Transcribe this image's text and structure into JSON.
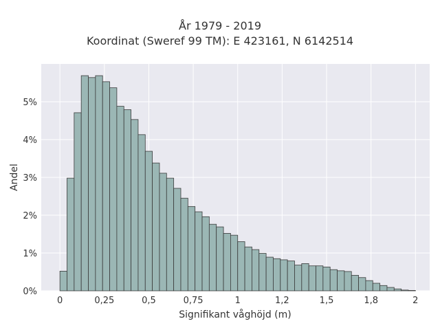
{
  "chart_data": {
    "type": "bar",
    "title": "År 1979 - 2019",
    "subtitle": "Koordinat (Sweref 99 TM): E 423161, N 6142514",
    "xlabel": "Signifikant våghöjd (m)",
    "ylabel": "Andel",
    "xlim": [
      -0.105,
      2.08
    ],
    "ylim": [
      0,
      6
    ],
    "grid": true,
    "bin_width": 0.04,
    "bin_start": 0,
    "xticks": [
      {
        "value": 0,
        "label": "0"
      },
      {
        "value": 0.25,
        "label": "0,25"
      },
      {
        "value": 0.5,
        "label": "0,5"
      },
      {
        "value": 0.75,
        "label": "0,75"
      },
      {
        "value": 1,
        "label": "1"
      },
      {
        "value": 1.25,
        "label": "1,2"
      },
      {
        "value": 1.5,
        "label": "1,5"
      },
      {
        "value": 1.75,
        "label": "1,8"
      },
      {
        "value": 2,
        "label": "2"
      }
    ],
    "yticks": [
      {
        "value": 0,
        "label": "0%"
      },
      {
        "value": 1,
        "label": "1%"
      },
      {
        "value": 2,
        "label": "2%"
      },
      {
        "value": 3,
        "label": "3%"
      },
      {
        "value": 4,
        "label": "4%"
      },
      {
        "value": 5,
        "label": "5%"
      }
    ],
    "values": [
      0.52,
      2.98,
      4.71,
      5.69,
      5.64,
      5.69,
      5.53,
      5.37,
      4.88,
      4.79,
      4.53,
      4.13,
      3.69,
      3.38,
      3.11,
      2.98,
      2.71,
      2.45,
      2.23,
      2.09,
      1.96,
      1.76,
      1.69,
      1.52,
      1.47,
      1.3,
      1.16,
      1.09,
      0.99,
      0.89,
      0.85,
      0.82,
      0.79,
      0.68,
      0.72,
      0.66,
      0.66,
      0.63,
      0.56,
      0.53,
      0.51,
      0.41,
      0.35,
      0.27,
      0.2,
      0.14,
      0.09,
      0.05,
      0.02,
      0.01
    ],
    "colors": {
      "plot_bg": "#e9e9f0",
      "grid": "#ffffff",
      "bar_fill": "#9bb7b5",
      "bar_stroke": "#3a3a3a"
    }
  }
}
